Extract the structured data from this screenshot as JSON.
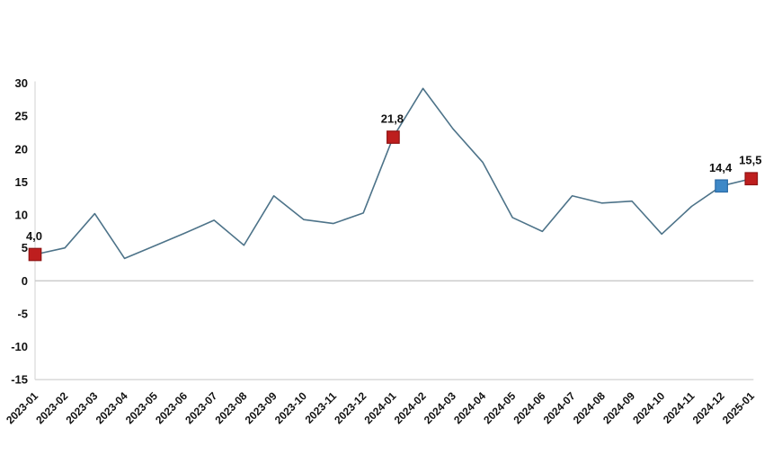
{
  "chart_data": {
    "type": "line",
    "title": "",
    "xlabel": "",
    "ylabel": "",
    "x": [
      "2023-01",
      "2023-02",
      "2023-03",
      "2023-04",
      "2023-05",
      "2023-06",
      "2023-07",
      "2023-08",
      "2023-09",
      "2023-10",
      "2023-11",
      "2023-12",
      "2024-01",
      "2024-02",
      "2024-03",
      "2024-04",
      "2024-05",
      "2024-06",
      "2024-07",
      "2024-08",
      "2024-09",
      "2024-10",
      "2024-11",
      "2024-12",
      "2025-01"
    ],
    "values": [
      4.0,
      5.0,
      10.2,
      3.4,
      5.3,
      7.2,
      9.2,
      5.4,
      12.9,
      9.3,
      8.7,
      10.3,
      21.8,
      29.2,
      23.1,
      18.0,
      9.6,
      7.5,
      12.9,
      11.8,
      12.1,
      7.1,
      11.3,
      14.4,
      15.5
    ],
    "labeled_points": [
      {
        "x": "2023-01",
        "value": 4.0,
        "label": "4,0",
        "marker": "square",
        "fill": "#be1e1e",
        "stroke": "#8f1313"
      },
      {
        "x": "2024-01",
        "value": 21.8,
        "label": "21,8",
        "marker": "square",
        "fill": "#be1e1e",
        "stroke": "#8f1313"
      },
      {
        "x": "2024-12",
        "value": 14.4,
        "label": "14,4",
        "marker": "square",
        "fill": "#3e88c7",
        "stroke": "#2a6aa5"
      },
      {
        "x": "2025-01",
        "value": 15.5,
        "label": "15,5",
        "marker": "square",
        "fill": "#be1e1e",
        "stroke": "#8f1313"
      }
    ],
    "ylim": [
      -15,
      30
    ],
    "yticks": [
      30,
      25,
      20,
      15,
      10,
      5,
      0,
      -5,
      -10,
      -15
    ],
    "decimal_separator": ",",
    "line_color": "#4d7389",
    "zero_line_color": "#c9c9c9",
    "axis_line_color": "#dcdcdc",
    "background_color": "#ffffff",
    "grid": "zero line only",
    "legend_position": "none"
  }
}
